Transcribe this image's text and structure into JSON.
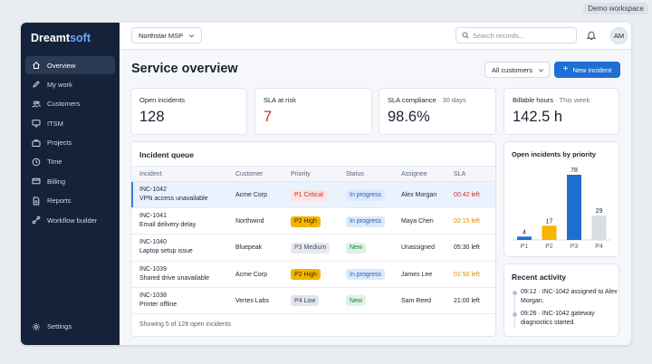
{
  "workspace_tag": "Demo workspace",
  "brand": {
    "main": "Dreamt",
    "accent": "soft"
  },
  "sidebar": {
    "items": [
      {
        "label": "Overview",
        "icon": "home-icon",
        "active": true
      },
      {
        "label": "My work",
        "icon": "pencil-icon"
      },
      {
        "label": "Customers",
        "icon": "users-icon"
      },
      {
        "label": "ITSM",
        "icon": "monitor-icon"
      },
      {
        "label": "Projects",
        "icon": "briefcase-icon"
      },
      {
        "label": "Time",
        "icon": "clock-icon"
      },
      {
        "label": "Billing",
        "icon": "credit-card-icon"
      },
      {
        "label": "Reports",
        "icon": "document-icon"
      },
      {
        "label": "Workflow builder",
        "icon": "workflow-icon"
      }
    ],
    "settings_label": "Settings"
  },
  "topbar": {
    "tenant": "Northstar MSP",
    "search_placeholder": "Search records...",
    "avatar_initials": "AM"
  },
  "page": {
    "title": "Service overview",
    "filter": "All customers",
    "new_button": "New incident"
  },
  "kpis": [
    {
      "label": "Open incidents",
      "sub": "",
      "value": "128"
    },
    {
      "label": "SLA at risk",
      "sub": "",
      "value": "7"
    },
    {
      "label": "SLA compliance",
      "sub": " · 30 days",
      "value": "98.6%"
    },
    {
      "label": "Billable hours",
      "sub": " · This week",
      "value": "142.5 h"
    }
  ],
  "queue": {
    "title": "Incident queue",
    "columns": [
      "Incident",
      "Customer",
      "Priority",
      "Status",
      "Assignee",
      "SLA"
    ],
    "rows": [
      {
        "id": "INC-1042",
        "summary": "VPN access unavailable",
        "customer": "Acme Corp",
        "priority": "P1 Critical",
        "status": "In progress",
        "assignee": "Alex Morgan",
        "sla": "00:42 left",
        "sla_state": "critical",
        "selected": true
      },
      {
        "id": "INC-1041",
        "summary": "Email delivery delay",
        "customer": "Northwind",
        "priority": "P2 High",
        "status": "In progress",
        "assignee": "Maya Chen",
        "sla": "02:15 left",
        "sla_state": "warning"
      },
      {
        "id": "INC-1040",
        "summary": "Laptop setup issue",
        "customer": "Bluepeak",
        "priority": "P3 Medium",
        "status": "New",
        "assignee": "Unassigned",
        "sla": "05:30 left",
        "sla_state": "normal"
      },
      {
        "id": "INC-1039",
        "summary": "Shared drive unavailable",
        "customer": "Acme Corp",
        "priority": "P2 High",
        "status": "In progress",
        "assignee": "James Lee",
        "sla": "01:50 left",
        "sla_state": "warning"
      },
      {
        "id": "INC-1038",
        "summary": "Printer offline",
        "customer": "Vertex Labs",
        "priority": "P4 Low",
        "status": "New",
        "assignee": "Sam Reed",
        "sla": "21:00 left",
        "sla_state": "normal"
      }
    ],
    "footer": "Showing 5 of 128 open incidents"
  },
  "colors": {
    "priority": {
      "P1 Critical": {
        "bg": "#fde3e1",
        "fg": "#c7322b"
      },
      "P2 High": {
        "bg": "#f4b400",
        "fg": "#3a2a00"
      },
      "P3 Medium": {
        "bg": "#e6e9ee",
        "fg": "#4a5461"
      },
      "P4 Low": {
        "bg": "#e1e5ec",
        "fg": "#3a4452"
      }
    },
    "status": {
      "In progress": {
        "bg": "#dbe9fb",
        "fg": "#1f5fbf"
      },
      "New": {
        "bg": "#dcf3e3",
        "fg": "#1e7a3e"
      }
    },
    "sla": {
      "critical": "#c7322b",
      "warning": "#e08a00",
      "normal": "#1b2433"
    }
  },
  "chart_data": {
    "type": "bar",
    "title": "Open incidents by priority",
    "categories": [
      "P1",
      "P2",
      "P3",
      "P4"
    ],
    "values": [
      4,
      17,
      78,
      29
    ],
    "colors": [
      "#1f6ed4",
      "#f4b400",
      "#1f6ed4",
      "#d8dde4"
    ],
    "ylim": [
      0,
      78
    ],
    "grid": false
  },
  "activity": {
    "title": "Recent activity",
    "items": [
      "09:12 · INC-1042 assigned to Alex Morgan.",
      "09:26 · INC-1042 gateway diagnostics started."
    ]
  }
}
